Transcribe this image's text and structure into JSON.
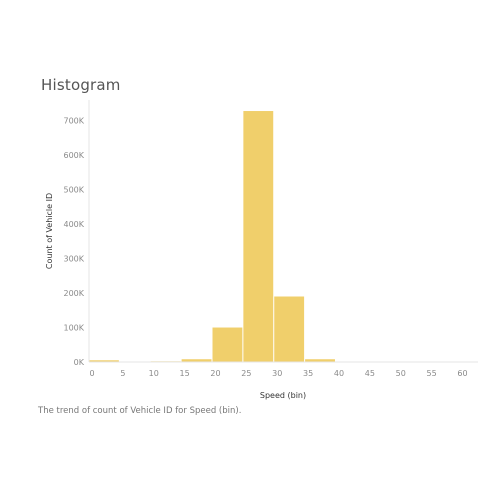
{
  "title": "Histogram",
  "caption": "The trend of count of Vehicle ID for Speed (bin).",
  "colors": {
    "bar": "#f0cf6b",
    "axis": "#e6e6e6",
    "tick_text": "#8a8a8a"
  },
  "chart_data": {
    "type": "bar",
    "title": "Histogram",
    "xlabel": "Speed (bin)",
    "ylabel": "Count of Vehicle ID",
    "bin_width": 5,
    "xlim": [
      0,
      63
    ],
    "ylim": [
      0,
      760000
    ],
    "x_ticks": [
      0,
      5,
      10,
      15,
      20,
      25,
      30,
      35,
      40,
      45,
      50,
      55,
      60
    ],
    "x_tick_labels": [
      "0",
      "5",
      "10",
      "15",
      "20",
      "25",
      "30",
      "35",
      "40",
      "45",
      "50",
      "55",
      "60"
    ],
    "y_ticks": [
      0,
      100000,
      200000,
      300000,
      400000,
      500000,
      600000,
      700000
    ],
    "y_tick_labels": [
      "0K",
      "100K",
      "200K",
      "300K",
      "400K",
      "500K",
      "600K",
      "700K"
    ],
    "bins": [
      {
        "start": 0,
        "value": 5000
      },
      {
        "start": 10,
        "value": 2000
      },
      {
        "start": 15,
        "value": 8000
      },
      {
        "start": 20,
        "value": 100000
      },
      {
        "start": 25,
        "value": 728000
      },
      {
        "start": 30,
        "value": 190000
      },
      {
        "start": 35,
        "value": 8000
      },
      {
        "start": 40,
        "value": 1000
      }
    ]
  }
}
